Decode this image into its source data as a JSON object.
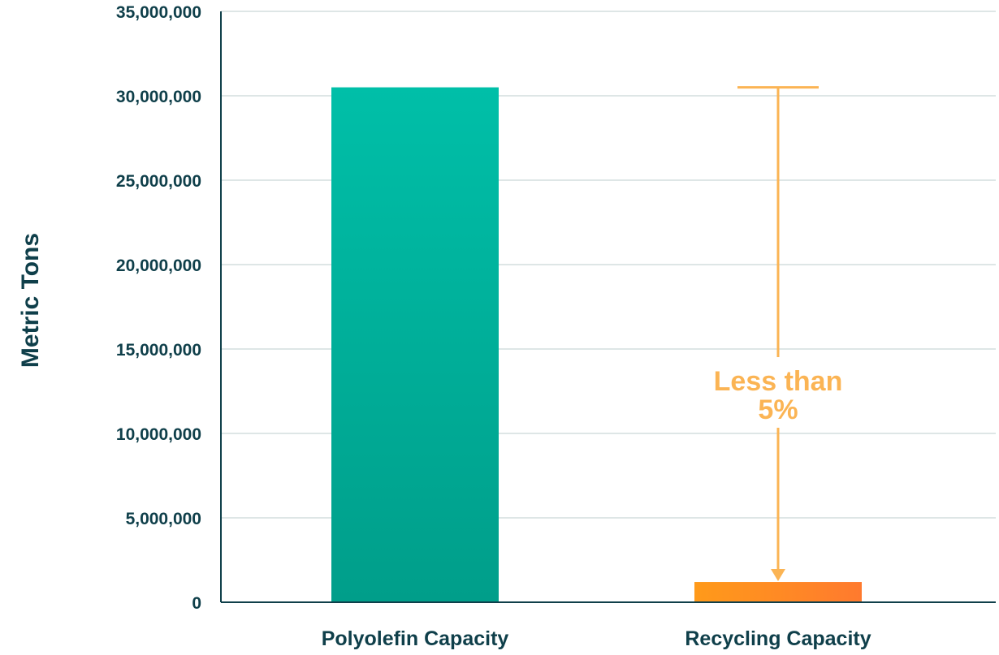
{
  "chart_data": {
    "type": "bar",
    "categories": [
      "Polyolefin Capacity",
      "Recycling Capacity"
    ],
    "values": [
      30500000,
      1200000
    ],
    "ylabel": "Metric Tons",
    "ylim": [
      0,
      35000000
    ],
    "yticks": [
      {
        "value": 0,
        "label": "0"
      },
      {
        "value": 5000000,
        "label": "5,000,000"
      },
      {
        "value": 10000000,
        "label": "10,000,000"
      },
      {
        "value": 15000000,
        "label": "15,000,000"
      },
      {
        "value": 20000000,
        "label": "20,000,000"
      },
      {
        "value": 25000000,
        "label": "25,000,000"
      },
      {
        "value": 30000000,
        "label": "30,000,000"
      },
      {
        "value": 35000000,
        "label": "35,000,000"
      }
    ],
    "grid": true,
    "bar_colors": [
      {
        "top": "#00bfa8",
        "bottom": "#009e8a"
      },
      {
        "left": "#ff9a1a",
        "right": "#ff7a2e"
      }
    ],
    "annotation": {
      "lines": [
        "Less than",
        "5%"
      ],
      "color": "#fbb454",
      "from_value": 30500000,
      "to_value": 1200000
    }
  }
}
